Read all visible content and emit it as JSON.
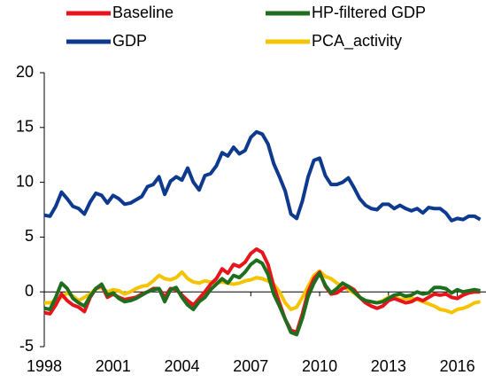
{
  "chart_data": {
    "type": "line",
    "x": [
      1998,
      1998.25,
      1998.5,
      1998.75,
      1999,
      1999.25,
      1999.5,
      1999.75,
      2000,
      2000.25,
      2000.5,
      2000.75,
      2001,
      2001.25,
      2001.5,
      2001.75,
      2002,
      2002.25,
      2002.5,
      2002.75,
      2003,
      2003.25,
      2003.5,
      2003.75,
      2004,
      2004.25,
      2004.5,
      2004.75,
      2005,
      2005.25,
      2005.5,
      2005.75,
      2006,
      2006.25,
      2006.5,
      2006.75,
      2007,
      2007.25,
      2007.5,
      2007.75,
      2008,
      2008.25,
      2008.5,
      2008.75,
      2009,
      2009.25,
      2009.5,
      2009.75,
      2010,
      2010.25,
      2010.5,
      2010.75,
      2011,
      2011.25,
      2011.5,
      2011.75,
      2012,
      2012.25,
      2012.5,
      2012.75,
      2013,
      2013.25,
      2013.5,
      2013.75,
      2014,
      2014.25,
      2014.5,
      2014.75,
      2015,
      2015.25,
      2015.5,
      2015.75,
      2016,
      2016.25,
      2016.5,
      2016.75,
      2017
    ],
    "series": [
      {
        "name": "Baseline",
        "color": "#e8141c",
        "values": [
          -1.9,
          -2.0,
          -1.2,
          -0.2,
          -0.8,
          -1.2,
          -1.4,
          -1.8,
          -0.5,
          0.3,
          0.6,
          -0.5,
          -0.2,
          -0.5,
          -0.7,
          -0.6,
          -0.5,
          -0.2,
          0.0,
          0.3,
          0.3,
          -0.5,
          0.3,
          0.2,
          -0.3,
          -0.8,
          -1.2,
          -0.6,
          0.0,
          0.7,
          1.2,
          2.1,
          1.7,
          2.5,
          2.3,
          2.7,
          3.5,
          3.9,
          3.6,
          2.5,
          0.5,
          -1.0,
          -2.5,
          -3.5,
          -3.7,
          -2.0,
          0.0,
          1.2,
          1.8,
          0.5,
          -0.2,
          -0.1,
          0.3,
          0.5,
          0.2,
          -0.5,
          -1.0,
          -1.3,
          -1.5,
          -1.3,
          -0.8,
          -0.6,
          -0.8,
          -1.0,
          -0.9,
          -0.6,
          -0.8,
          -0.5,
          -0.2,
          -0.3,
          -0.2,
          -0.5,
          -0.6,
          -0.3,
          -0.1,
          0.0,
          0.0
        ]
      },
      {
        "name": "HP-filtered GDP",
        "color": "#1f6e1f",
        "values": [
          -1.5,
          -1.6,
          -0.5,
          0.8,
          0.3,
          -0.6,
          -1.0,
          -1.3,
          -0.4,
          0.3,
          0.7,
          -0.3,
          -0.1,
          -0.6,
          -0.9,
          -0.8,
          -0.6,
          -0.3,
          0.0,
          0.2,
          0.3,
          -0.9,
          0.2,
          0.4,
          -0.5,
          -1.2,
          -1.6,
          -0.9,
          -0.5,
          0.2,
          0.7,
          1.2,
          0.8,
          1.5,
          1.3,
          1.8,
          2.5,
          2.9,
          2.6,
          1.6,
          -0.2,
          -1.3,
          -2.5,
          -3.7,
          -3.9,
          -2.4,
          -0.4,
          0.8,
          1.7,
          0.6,
          -0.1,
          0.3,
          0.8,
          0.5,
          0.0,
          -0.5,
          -0.8,
          -0.9,
          -1.0,
          -0.9,
          -0.6,
          -0.3,
          -0.2,
          -0.4,
          -0.3,
          0.0,
          -0.2,
          -0.1,
          0.4,
          0.4,
          0.3,
          -0.1,
          0.2,
          0.0,
          0.1,
          0.2,
          0.1
        ]
      },
      {
        "name": "GDP",
        "color": "#0d3a8e",
        "values": [
          7.0,
          6.9,
          7.8,
          9.1,
          8.5,
          7.8,
          7.6,
          7.1,
          8.2,
          9.0,
          8.8,
          8.1,
          8.8,
          8.5,
          8.0,
          8.1,
          8.4,
          8.7,
          9.6,
          9.8,
          10.5,
          8.9,
          10.1,
          10.5,
          10.2,
          11.3,
          10.0,
          9.3,
          10.6,
          10.8,
          11.5,
          12.7,
          12.4,
          13.2,
          12.6,
          12.9,
          14.1,
          14.6,
          14.4,
          13.5,
          11.7,
          10.5,
          9.2,
          7.1,
          6.7,
          8.3,
          10.5,
          12.0,
          12.2,
          10.6,
          9.8,
          9.8,
          10.0,
          10.4,
          9.5,
          8.5,
          7.9,
          7.6,
          7.5,
          8.0,
          8.0,
          7.6,
          7.9,
          7.6,
          7.4,
          7.6,
          7.2,
          7.7,
          7.6,
          7.6,
          7.2,
          6.5,
          6.7,
          6.6,
          6.9,
          6.9,
          6.6
        ]
      },
      {
        "name": "PCA_activity",
        "color": "#f5c400",
        "values": [
          -1.0,
          -1.0,
          -0.8,
          -0.5,
          -0.1,
          -0.4,
          -0.8,
          -0.5,
          -0.2,
          0.3,
          0.4,
          0.0,
          0.2,
          0.1,
          -0.2,
          0.0,
          0.3,
          0.5,
          0.6,
          1.0,
          1.5,
          1.2,
          1.1,
          1.3,
          1.8,
          1.2,
          0.9,
          0.8,
          1.0,
          0.9,
          0.8,
          0.9,
          0.8,
          0.7,
          0.8,
          1.0,
          1.1,
          1.3,
          1.2,
          1.0,
          0.7,
          0.0,
          -1.0,
          -1.6,
          -1.4,
          -0.5,
          0.5,
          1.5,
          1.9,
          1.4,
          1.2,
          0.8,
          0.5,
          0.2,
          -0.1,
          -0.5,
          -0.8,
          -0.9,
          -1.0,
          -0.8,
          -0.5,
          -0.4,
          -0.7,
          -0.6,
          -0.6,
          -0.7,
          -0.9,
          -1.1,
          -1.3,
          -1.6,
          -1.7,
          -1.9,
          -1.6,
          -1.5,
          -1.3,
          -1.0,
          -0.9
        ]
      }
    ],
    "xlim": [
      1998,
      2017.25
    ],
    "xticks": [
      1998,
      2001,
      2004,
      2007,
      2010,
      2013,
      2016
    ],
    "ylim": [
      -5,
      20
    ],
    "yticks": [
      -5,
      0,
      5,
      10,
      15,
      20
    ],
    "grid": false,
    "legend": "top"
  }
}
